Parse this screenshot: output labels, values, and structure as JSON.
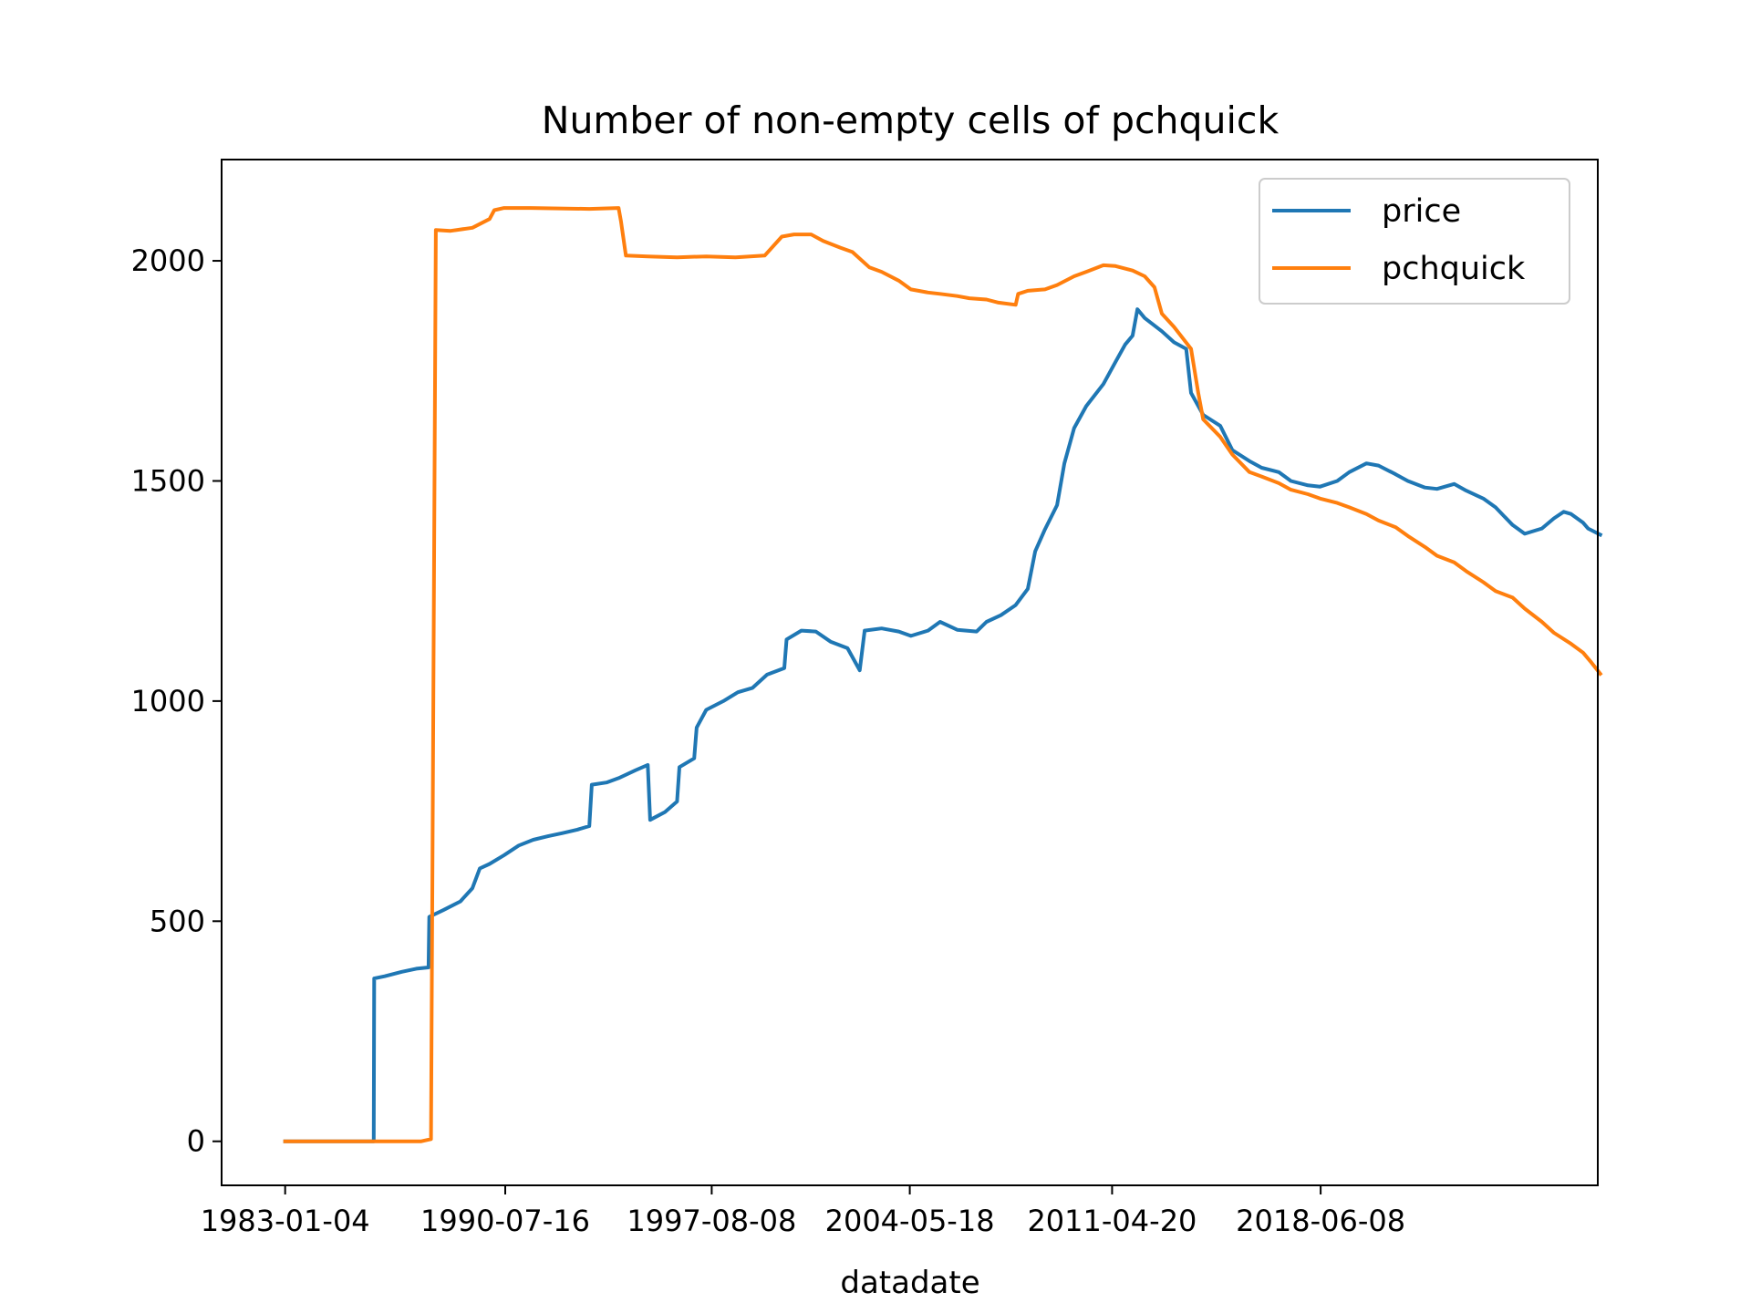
{
  "chart_data": {
    "type": "line",
    "title": "Number of non-empty cells of pchquick",
    "xlabel": "datadate",
    "ylabel": "",
    "x_ticks": [
      "1983-01-04",
      "1990-07-16",
      "1997-08-08",
      "2004-05-18",
      "2011-04-20",
      "2018-06-08"
    ],
    "y_ticks": [
      0,
      500,
      1000,
      1500,
      2000
    ],
    "xlim": [
      "1980-11-01",
      "2027-12-01"
    ],
    "ylim": [
      -100,
      2230
    ],
    "grid": false,
    "legend_position": "top-right",
    "series": [
      {
        "name": "price",
        "color": "#1f77b4",
        "points": [
          [
            "1983-01-04",
            0
          ],
          [
            "1986-01-15",
            0
          ],
          [
            "1986-01-20",
            370
          ],
          [
            "1986-06-01",
            375
          ],
          [
            "1987-01-01",
            385
          ],
          [
            "1987-07-01",
            392
          ],
          [
            "1987-12-01",
            395
          ],
          [
            "1987-12-10",
            510
          ],
          [
            "1988-06-01",
            525
          ],
          [
            "1989-01-01",
            545
          ],
          [
            "1989-06-01",
            575
          ],
          [
            "1989-09-01",
            620
          ],
          [
            "1990-01-01",
            630
          ],
          [
            "1990-07-01",
            650
          ],
          [
            "1991-01-01",
            672
          ],
          [
            "1991-07-01",
            685
          ],
          [
            "1992-01-01",
            693
          ],
          [
            "1992-07-01",
            700
          ],
          [
            "1993-01-01",
            708
          ],
          [
            "1993-06-01",
            716
          ],
          [
            "1993-07-01",
            810
          ],
          [
            "1994-01-01",
            815
          ],
          [
            "1994-06-01",
            825
          ],
          [
            "1995-01-01",
            843
          ],
          [
            "1995-06-01",
            855
          ],
          [
            "1995-07-01",
            730
          ],
          [
            "1996-01-01",
            748
          ],
          [
            "1996-06-01",
            772
          ],
          [
            "1996-07-01",
            850
          ],
          [
            "1997-01-01",
            870
          ],
          [
            "1997-02-01",
            940
          ],
          [
            "1997-06-01",
            980
          ],
          [
            "1998-01-01",
            1000
          ],
          [
            "1998-07-01",
            1020
          ],
          [
            "1999-01-01",
            1030
          ],
          [
            "1999-07-01",
            1060
          ],
          [
            "2000-02-01",
            1075
          ],
          [
            "2000-03-01",
            1140
          ],
          [
            "2000-09-01",
            1160
          ],
          [
            "2001-03-01",
            1158
          ],
          [
            "2001-09-01",
            1135
          ],
          [
            "2002-04-01",
            1120
          ],
          [
            "2002-09-01",
            1070
          ],
          [
            "2002-11-01",
            1160
          ],
          [
            "2003-06-01",
            1165
          ],
          [
            "2004-01-01",
            1158
          ],
          [
            "2004-06-01",
            1148
          ],
          [
            "2005-01-01",
            1160
          ],
          [
            "2005-06-01",
            1180
          ],
          [
            "2006-01-01",
            1162
          ],
          [
            "2006-09-01",
            1158
          ],
          [
            "2007-01-01",
            1180
          ],
          [
            "2007-07-01",
            1195
          ],
          [
            "2008-01-01",
            1218
          ],
          [
            "2008-06-01",
            1255
          ],
          [
            "2008-09-01",
            1340
          ],
          [
            "2009-01-01",
            1390
          ],
          [
            "2009-06-01",
            1445
          ],
          [
            "2009-09-01",
            1540
          ],
          [
            "2010-01-01",
            1620
          ],
          [
            "2010-06-01",
            1670
          ],
          [
            "2011-01-01",
            1720
          ],
          [
            "2011-06-01",
            1770
          ],
          [
            "2011-10-01",
            1810
          ],
          [
            "2012-01-01",
            1830
          ],
          [
            "2012-03-01",
            1890
          ],
          [
            "2012-06-01",
            1870
          ],
          [
            "2013-01-01",
            1840
          ],
          [
            "2013-06-01",
            1815
          ],
          [
            "2013-11-01",
            1800
          ],
          [
            "2014-01-01",
            1700
          ],
          [
            "2014-06-01",
            1650
          ],
          [
            "2015-01-01",
            1625
          ],
          [
            "2015-06-01",
            1570
          ],
          [
            "2016-01-01",
            1545
          ],
          [
            "2016-06-01",
            1530
          ],
          [
            "2017-01-01",
            1520
          ],
          [
            "2017-06-01",
            1500
          ],
          [
            "2018-01-01",
            1490
          ],
          [
            "2018-06-01",
            1487
          ],
          [
            "2019-01-01",
            1500
          ],
          [
            "2019-06-01",
            1520
          ],
          [
            "2020-01-01",
            1540
          ],
          [
            "2020-06-01",
            1535
          ],
          [
            "2021-01-01",
            1515
          ],
          [
            "2021-06-01",
            1500
          ],
          [
            "2022-01-01",
            1485
          ],
          [
            "2022-06-01",
            1482
          ],
          [
            "2023-01-01",
            1493
          ],
          [
            "2023-06-01",
            1478
          ],
          [
            "2024-01-01",
            1460
          ],
          [
            "2024-06-01",
            1440
          ],
          [
            "2025-01-01",
            1400
          ],
          [
            "2025-06-01",
            1380
          ],
          [
            "2026-01-01",
            1392
          ],
          [
            "2026-06-01",
            1415
          ],
          [
            "2026-10-01",
            1430
          ],
          [
            "2027-01-01",
            1425
          ],
          [
            "2027-06-01",
            1405
          ],
          [
            "2027-08-01",
            1392
          ],
          [
            "2028-01-01",
            1378
          ]
        ]
      },
      {
        "name": "pchquick",
        "color": "#ff7f0e",
        "points": [
          [
            "1983-01-04",
            0
          ],
          [
            "1987-09-01",
            0
          ],
          [
            "1988-01-01",
            5
          ],
          [
            "1988-03-01",
            2070
          ],
          [
            "1988-09-01",
            2068
          ],
          [
            "1989-06-01",
            2075
          ],
          [
            "1990-01-01",
            2095
          ],
          [
            "1990-03-01",
            2115
          ],
          [
            "1990-07-01",
            2120
          ],
          [
            "1991-06-01",
            2120
          ],
          [
            "1993-06-01",
            2118
          ],
          [
            "1994-06-01",
            2120
          ],
          [
            "1994-07-01",
            2090
          ],
          [
            "1994-09-01",
            2012
          ],
          [
            "1995-06-01",
            2010
          ],
          [
            "1996-06-01",
            2008
          ],
          [
            "1997-06-01",
            2010
          ],
          [
            "1998-06-01",
            2008
          ],
          [
            "1999-06-01",
            2012
          ],
          [
            "2000-01-01",
            2055
          ],
          [
            "2000-06-01",
            2060
          ],
          [
            "2001-01-01",
            2060
          ],
          [
            "2001-06-01",
            2045
          ],
          [
            "2002-01-01",
            2030
          ],
          [
            "2002-06-01",
            2020
          ],
          [
            "2003-01-01",
            1985
          ],
          [
            "2003-06-01",
            1975
          ],
          [
            "2004-01-01",
            1955
          ],
          [
            "2004-06-01",
            1935
          ],
          [
            "2005-01-01",
            1928
          ],
          [
            "2005-06-01",
            1925
          ],
          [
            "2006-01-01",
            1920
          ],
          [
            "2006-06-01",
            1915
          ],
          [
            "2007-01-01",
            1912
          ],
          [
            "2007-06-01",
            1905
          ],
          [
            "2008-01-01",
            1900
          ],
          [
            "2008-02-01",
            1925
          ],
          [
            "2008-06-01",
            1932
          ],
          [
            "2009-01-01",
            1935
          ],
          [
            "2009-06-01",
            1945
          ],
          [
            "2010-01-01",
            1965
          ],
          [
            "2010-06-01",
            1975
          ],
          [
            "2011-01-01",
            1990
          ],
          [
            "2011-06-01",
            1988
          ],
          [
            "2012-01-01",
            1978
          ],
          [
            "2012-06-01",
            1965
          ],
          [
            "2012-10-01",
            1940
          ],
          [
            "2013-01-01",
            1880
          ],
          [
            "2013-06-01",
            1850
          ],
          [
            "2014-01-01",
            1800
          ],
          [
            "2014-04-01",
            1700
          ],
          [
            "2014-06-01",
            1640
          ],
          [
            "2015-01-01",
            1600
          ],
          [
            "2015-06-01",
            1560
          ],
          [
            "2016-01-01",
            1520
          ],
          [
            "2016-06-01",
            1510
          ],
          [
            "2017-01-01",
            1495
          ],
          [
            "2017-06-01",
            1480
          ],
          [
            "2018-01-01",
            1470
          ],
          [
            "2018-06-01",
            1460
          ],
          [
            "2019-01-01",
            1450
          ],
          [
            "2019-06-01",
            1440
          ],
          [
            "2020-01-01",
            1425
          ],
          [
            "2020-06-01",
            1410
          ],
          [
            "2021-01-01",
            1395
          ],
          [
            "2021-06-01",
            1375
          ],
          [
            "2022-01-01",
            1350
          ],
          [
            "2022-06-01",
            1330
          ],
          [
            "2023-01-01",
            1315
          ],
          [
            "2023-06-01",
            1295
          ],
          [
            "2024-01-01",
            1270
          ],
          [
            "2024-06-01",
            1250
          ],
          [
            "2025-01-01",
            1235
          ],
          [
            "2025-06-01",
            1210
          ],
          [
            "2026-01-01",
            1180
          ],
          [
            "2026-06-01",
            1155
          ],
          [
            "2027-01-01",
            1130
          ],
          [
            "2027-06-01",
            1110
          ],
          [
            "2027-09-01",
            1090
          ],
          [
            "2028-01-01",
            1062
          ]
        ]
      }
    ]
  }
}
